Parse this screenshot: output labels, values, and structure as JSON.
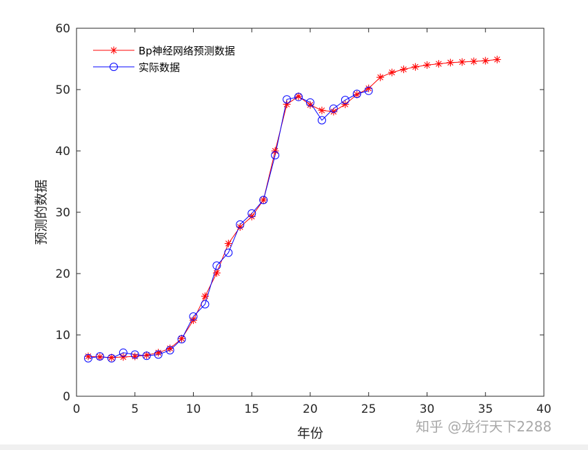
{
  "chart_data": {
    "type": "line",
    "xlabel": "年份",
    "ylabel": "预测的数据",
    "xlim": [
      0,
      40
    ],
    "ylim": [
      0,
      60
    ],
    "xticks": [
      0,
      5,
      10,
      15,
      20,
      25,
      30,
      35,
      40
    ],
    "yticks": [
      0,
      10,
      20,
      30,
      40,
      50,
      60
    ],
    "grid": false,
    "legend_position": "top-left",
    "series": [
      {
        "name": "Bp神经网络预测数据",
        "color": "#ff0000",
        "marker": "asterisk",
        "x": [
          1,
          2,
          3,
          4,
          5,
          6,
          7,
          8,
          9,
          10,
          11,
          12,
          13,
          14,
          15,
          16,
          17,
          18,
          19,
          20,
          21,
          22,
          23,
          24,
          25,
          26,
          27,
          28,
          29,
          30,
          31,
          32,
          33,
          34,
          35,
          36
        ],
        "y": [
          6.5,
          6.4,
          6.3,
          6.4,
          6.5,
          6.7,
          7.1,
          7.8,
          9.4,
          12.4,
          16.3,
          20.1,
          24.9,
          27.6,
          29.3,
          32.0,
          40.0,
          47.6,
          48.9,
          47.5,
          46.6,
          46.4,
          47.6,
          49.2,
          50.2,
          52.0,
          52.8,
          53.3,
          53.7,
          54.0,
          54.2,
          54.4,
          54.5,
          54.6,
          54.7,
          54.9
        ]
      },
      {
        "name": "实际数据",
        "color": "#0000ff",
        "marker": "circle",
        "x": [
          1,
          2,
          3,
          4,
          5,
          6,
          7,
          8,
          9,
          10,
          11,
          12,
          13,
          14,
          15,
          16,
          17,
          18,
          19,
          20,
          21,
          22,
          23,
          24,
          25
        ],
        "y": [
          6.2,
          6.5,
          6.2,
          7.1,
          6.8,
          6.6,
          6.8,
          7.5,
          9.3,
          13.0,
          15.0,
          21.3,
          23.4,
          28.0,
          29.8,
          32.0,
          39.3,
          48.4,
          48.8,
          47.9,
          45.0,
          46.9,
          48.3,
          49.3,
          49.8
        ]
      }
    ]
  },
  "watermark": "知乎 @龙行天下2288"
}
